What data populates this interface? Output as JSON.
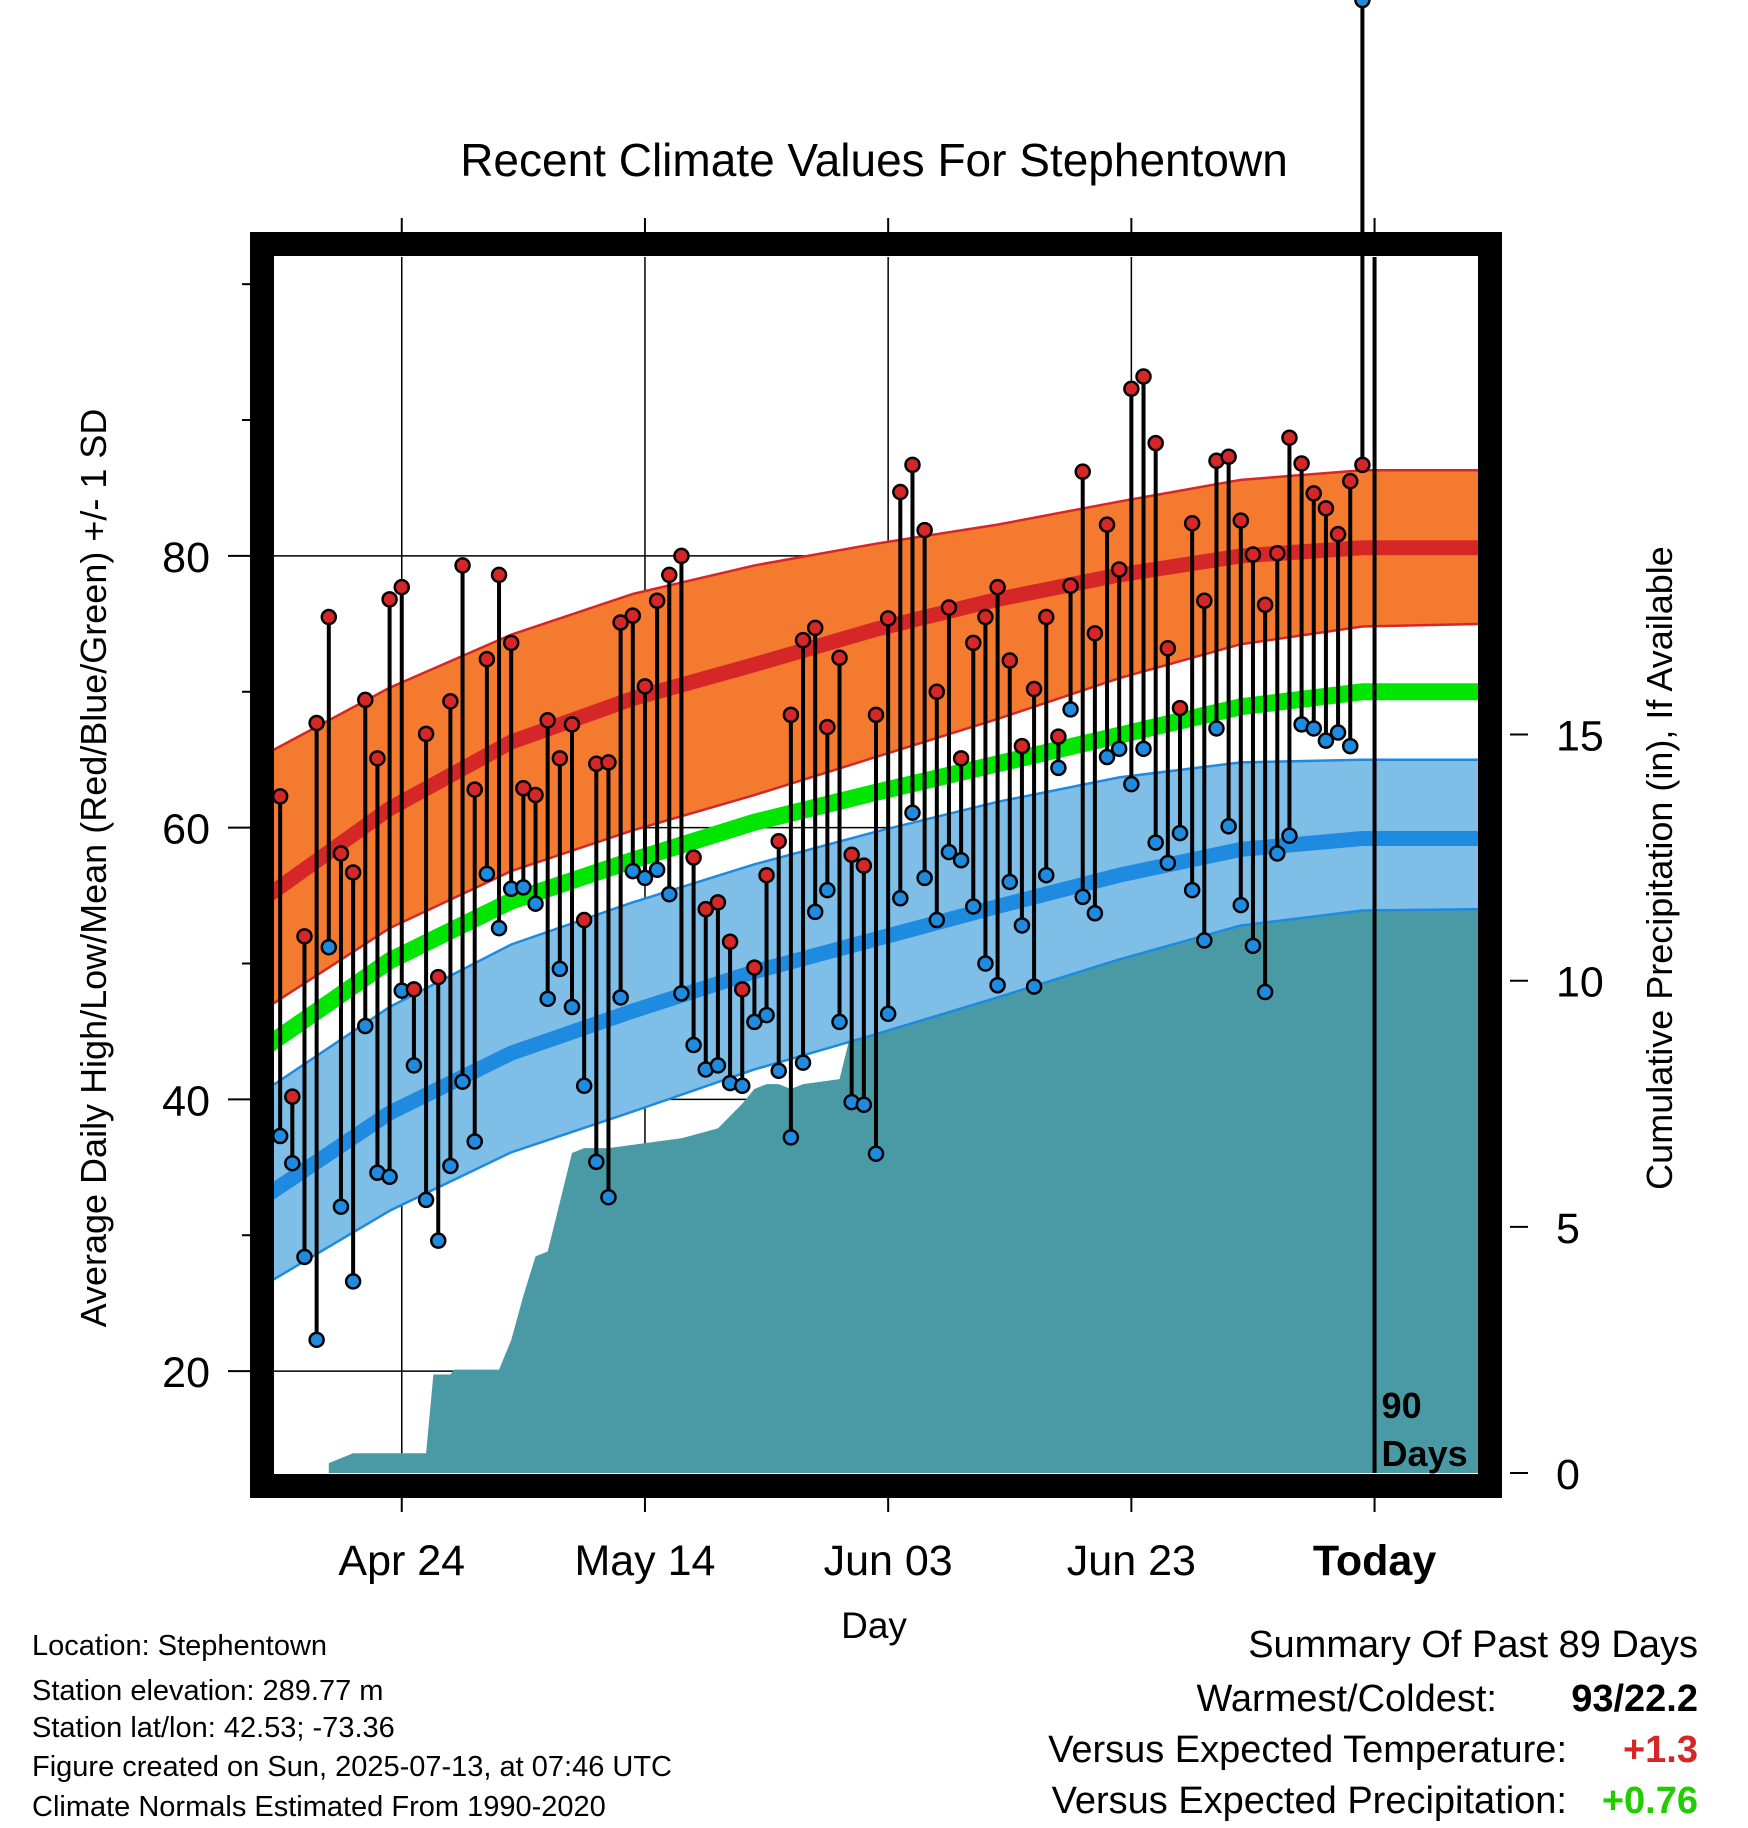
{
  "chart_data": {
    "type": "line",
    "title": "Recent Climate Values For Stephentown",
    "xlabel": "Day",
    "ylabel": "Average Daily High/Low/Mean (Red/Blue/Green) +/- 1 SD",
    "y2label": "Cumulative Precipitation (in), If Available",
    "ylim": [
      12.5,
      102
    ],
    "y2lim": [
      0,
      24.7
    ],
    "y_ticks": [
      20,
      40,
      60,
      80
    ],
    "y2_ticks": [
      0,
      5,
      10,
      15
    ],
    "x_ticks": [
      {
        "day": 10,
        "label": "Apr 24"
      },
      {
        "day": 30,
        "label": "May 14"
      },
      {
        "day": 50,
        "label": "Jun 03"
      },
      {
        "day": 70,
        "label": "Jun 23"
      },
      {
        "day": 90,
        "label": "Today"
      }
    ],
    "xlim": [
      -1,
      99
    ],
    "today_day": 90,
    "today_marker_label": "90\nDays",
    "normals": {
      "days": [
        -1,
        9,
        19,
        29,
        39,
        49,
        59,
        69,
        79,
        89,
        99
      ],
      "high_mean": [
        55,
        61.4,
        66.3,
        69.5,
        72,
        74.6,
        76.8,
        78.6,
        80,
        80.6,
        80.6
      ],
      "high_upper": [
        65.5,
        70.3,
        74.2,
        77.2,
        79.3,
        80.9,
        82.3,
        84,
        85.6,
        86.3,
        86.3
      ],
      "high_lower": [
        46.8,
        52.6,
        56.8,
        59.8,
        62.4,
        65.2,
        68,
        71,
        73.5,
        74.8,
        75
      ],
      "mean": [
        44,
        50.2,
        54.6,
        57.6,
        60.4,
        62.6,
        64.7,
        66.8,
        68.9,
        70,
        70
      ],
      "low_mean": [
        33,
        39,
        43.4,
        46.5,
        49.4,
        51.8,
        54.2,
        56.5,
        58.4,
        59.2,
        59.2
      ],
      "low_upper": [
        40.8,
        46.8,
        51.4,
        54.5,
        57.3,
        59.7,
        61.9,
        63.7,
        64.8,
        65,
        65
      ],
      "low_lower": [
        26.5,
        31.8,
        36.1,
        39.1,
        42.2,
        44.8,
        47.5,
        50.3,
        52.8,
        53.9,
        54
      ]
    },
    "series": [
      {
        "name": "High",
        "color": "#d62728",
        "values": [
          62.3,
          40.2,
          52,
          67.7,
          75.5,
          58.1,
          56.7,
          69.4,
          65.1,
          76.8,
          77.7,
          48.1,
          66.9,
          49,
          69.3,
          79.3,
          62.8,
          72.4,
          78.6,
          73.6,
          62.9,
          62.4,
          67.9,
          65.1,
          67.6,
          53.2,
          64.7,
          64.8,
          75.1,
          75.6,
          70.4,
          76.7,
          78.6,
          80,
          57.8,
          54,
          54.5,
          51.6,
          48.1,
          49.7,
          56.5,
          59,
          68.3,
          73.8,
          74.7,
          67.4,
          72.5,
          58,
          57.2,
          68.3,
          75.4,
          84.7,
          86.7,
          81.9,
          70,
          76.2,
          65.1,
          73.6,
          75.5,
          77.7,
          72.3,
          66,
          70.2,
          75.5,
          66.7,
          77.8,
          86.2,
          74.3,
          82.3,
          79,
          92.3,
          93.2,
          88.3,
          73.2,
          68.8,
          82.4,
          76.7,
          87,
          87.3,
          82.6,
          80.1,
          76.4,
          80.2,
          88.7,
          86.8,
          84.6,
          83.5,
          81.6,
          85.5,
          86.7
        ]
      },
      {
        "name": "Low",
        "color": "#1f8be0",
        "values": [
          37.3,
          35.3,
          28.4,
          22.3,
          51.2,
          32.1,
          26.6,
          45.4,
          34.6,
          34.3,
          48,
          42.5,
          32.6,
          29.6,
          35.1,
          41.3,
          36.9,
          56.6,
          52.6,
          55.5,
          55.6,
          54.4,
          47.4,
          49.6,
          46.8,
          41,
          35.4,
          32.8,
          47.5,
          56.8,
          56.3,
          56.9,
          55.1,
          47.8,
          44,
          42.2,
          42.5,
          41.2,
          41,
          45.7,
          46.2,
          42.1,
          37.2,
          42.7,
          53.8,
          55.4,
          45.7,
          39.8,
          39.6,
          36,
          46.3,
          54.8,
          61.1,
          56.3,
          53.2,
          58.2,
          57.6,
          54.2,
          50,
          48.4,
          56,
          52.8,
          48.3,
          56.5,
          64.4,
          68.7,
          54.9,
          53.7,
          65.2,
          65.8,
          63.2,
          65.8,
          58.9,
          57.4,
          59.6,
          55.4,
          51.7,
          67.3,
          60.1,
          54.3,
          51.3,
          47.9,
          58.1,
          59.4,
          67.6,
          67.3,
          66.4,
          67,
          66
        ]
      }
    ],
    "precipitation": {
      "days": [
        4,
        6,
        12,
        12.6,
        14,
        14.3,
        18,
        19,
        20,
        21,
        22,
        24,
        25,
        27,
        33,
        36,
        38,
        39,
        40,
        41,
        42,
        43,
        46,
        47,
        48,
        50,
        51,
        52,
        53,
        54,
        56,
        58,
        61,
        62,
        63,
        64,
        67,
        68,
        69,
        70,
        71,
        73,
        77,
        80,
        82,
        85,
        87,
        99
      ],
      "values": [
        0.2,
        0.4,
        0.4,
        2,
        2,
        2.1,
        2.1,
        2.7,
        3.6,
        4.4,
        4.5,
        6.5,
        6.6,
        6.6,
        6.8,
        7,
        7.5,
        7.8,
        7.9,
        7.9,
        7.8,
        7.9,
        8,
        9,
        10.3,
        10.3,
        10.8,
        11.5,
        11.6,
        11.6,
        11.8,
        12,
        12.2,
        12.4,
        12.9,
        13,
        13.1,
        13.2,
        13.2,
        13.3,
        13.3,
        13.3,
        13.4,
        13.4,
        13.5,
        13.5,
        13.7,
        13.8
      ]
    },
    "colors": {
      "high_band": "#f37a2e",
      "high_edge": "#d62728",
      "high_mean": "#d62728",
      "mean": "#00e600",
      "low_band": "#7fbee6",
      "low_edge": "#1f8be0",
      "low_mean": "#1f8be0",
      "precip": "#4a9aa5"
    }
  },
  "info": {
    "location": "Location: Stephentown",
    "elevation": "Station elevation: 289.77 m",
    "latlon": "Station lat/lon: 42.53; -73.36",
    "created": "Figure created on Sun, 2025-07-13, at 07:46 UTC",
    "normals": "Climate Normals Estimated From 1990-2020"
  },
  "summary": {
    "heading": "Summary Of Past 89 Days",
    "warmest_label": "Warmest/Coldest:",
    "warmest_value": "93/22.2",
    "temp_label": "Versus Expected Temperature:",
    "temp_value": "+1.3",
    "temp_color": "#d62728",
    "precip_label": "Versus Expected Precipitation:",
    "precip_value": "+0.76",
    "precip_color": "#22cc00"
  }
}
